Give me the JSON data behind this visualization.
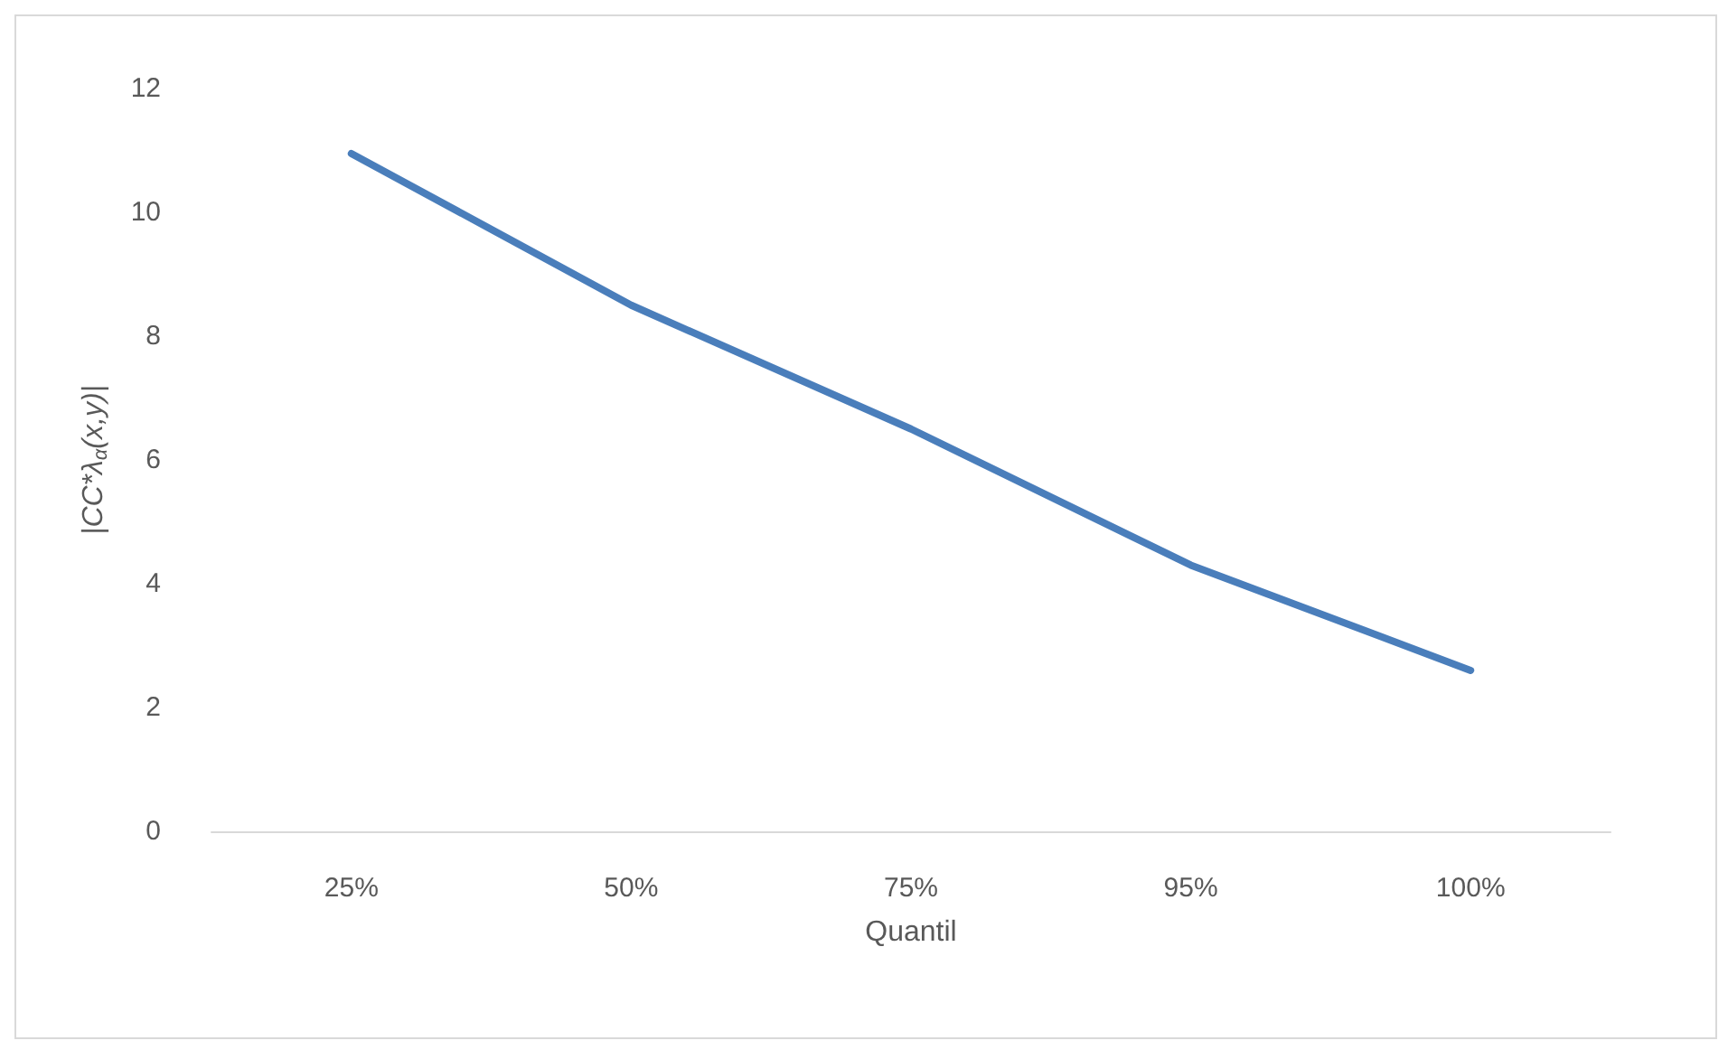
{
  "chart_data": {
    "type": "line",
    "xlabel": "Quantil",
    "ylabel": "|CC*λ$_{α}$(x,y)|",
    "categories": [
      "25%",
      "50%",
      "75%",
      "95%",
      "100%"
    ],
    "series": [
      {
        "color": "#4a7ebb",
        "values": [
          10.95,
          8.5,
          6.5,
          4.3,
          2.6
        ]
      }
    ],
    "ylim": [
      0,
      12
    ],
    "yticks": [
      0,
      2,
      4,
      6,
      8,
      10,
      12
    ],
    "grid": false,
    "marker": "none",
    "line_style": "solid"
  }
}
